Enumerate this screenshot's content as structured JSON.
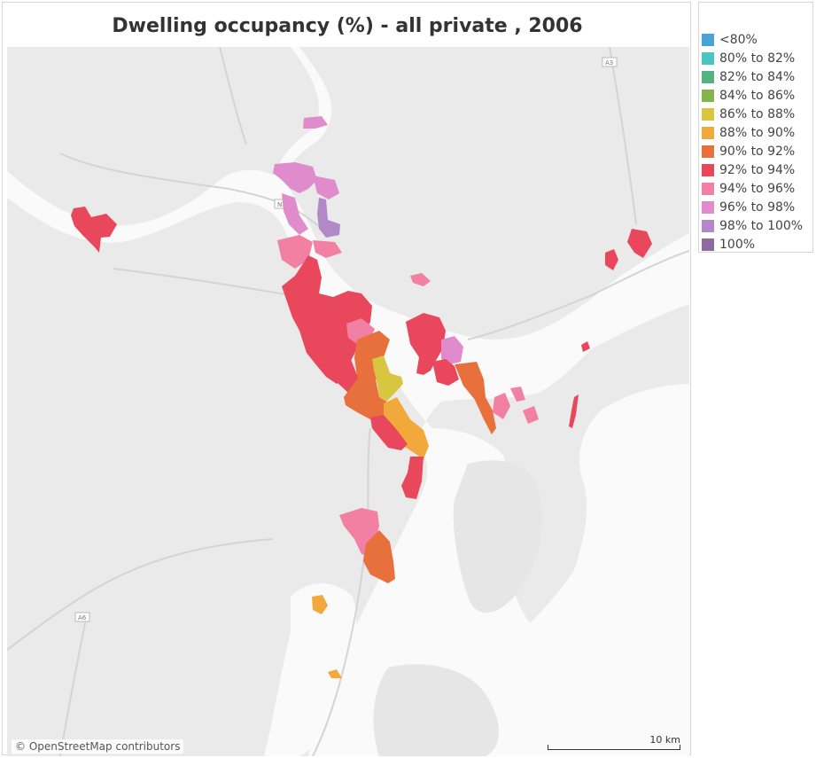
{
  "title": "Dwelling occupancy (%) - all private , 2006",
  "map": {
    "attribution": "© OpenStreetMap contributors",
    "scale_label": "10 km",
    "road_labels": [
      "A3",
      "N1",
      "A6"
    ]
  },
  "legend": {
    "items": [
      {
        "label": "<80%",
        "color": "#4aa3d6"
      },
      {
        "label": "80% to 82%",
        "color": "#4cc4bf"
      },
      {
        "label": "82% to 84%",
        "color": "#52b381"
      },
      {
        "label": "84% to 86%",
        "color": "#85b34e"
      },
      {
        "label": "86% to 88%",
        "color": "#d8c540"
      },
      {
        "label": "88% to 90%",
        "color": "#f2a93c"
      },
      {
        "label": "90% to 92%",
        "color": "#e8703c"
      },
      {
        "label": "92% to 94%",
        "color": "#e8475c"
      },
      {
        "label": "94% to 96%",
        "color": "#f27fa4"
      },
      {
        "label": "96% to 98%",
        "color": "#e08bcc"
      },
      {
        "label": "98% to 100%",
        "color": "#b388c9"
      },
      {
        "label": "100%",
        "color": "#8e6a9e"
      }
    ]
  }
}
